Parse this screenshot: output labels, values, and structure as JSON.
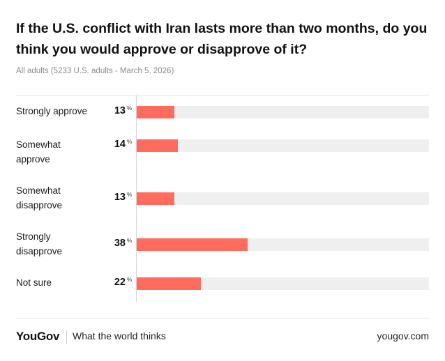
{
  "header": {
    "title": "If the U.S. conflict with Iran lasts more than two months, do you think you would approve or disapprove of it?",
    "subtitle": "All adults (5233 U.S. adults - March 5, 2026)"
  },
  "chart_data": {
    "type": "bar",
    "orientation": "horizontal",
    "categories": [
      "Strongly approve",
      "Somewhat approve",
      "Somewhat disapprove",
      "Strongly disapprove",
      "Not sure"
    ],
    "values": [
      13,
      14,
      13,
      38,
      22
    ],
    "unit": "%",
    "xlim": [
      0,
      100
    ],
    "bar_color": "#ff6b5c",
    "track_color": "#efefef"
  },
  "footer": {
    "brand": "YouGov",
    "tagline": "What the world thinks",
    "site": "yougov.com"
  }
}
